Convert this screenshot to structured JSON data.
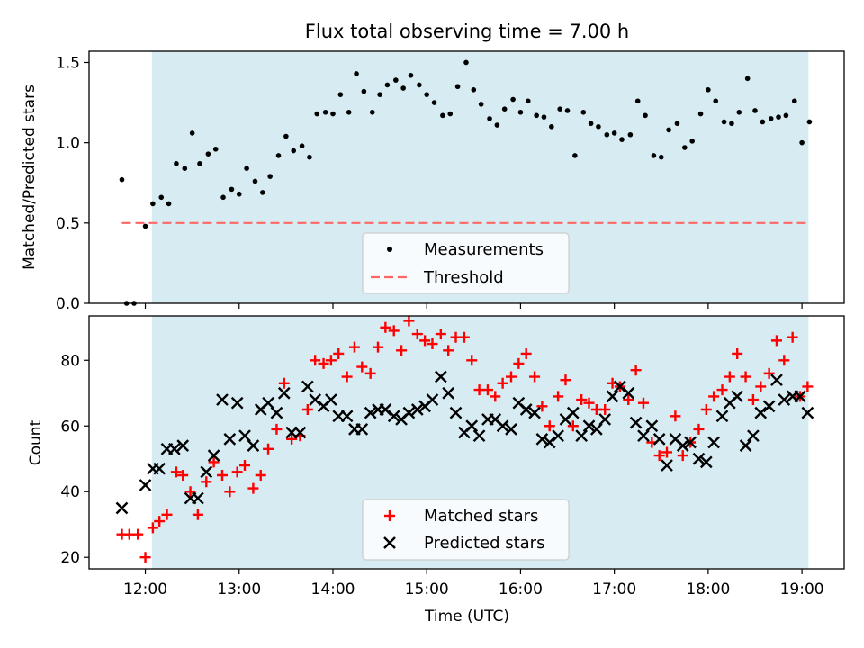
{
  "chart_data": [
    {
      "type": "scatter",
      "title": "Flux total observing time = 7.00 h",
      "xlabel": "",
      "ylabel": "Matched/Predicted stars",
      "xlim": [
        11.4,
        19.45
      ],
      "ylim": [
        0.0,
        1.57
      ],
      "xticks": [
        12,
        13,
        14,
        15,
        16,
        17,
        18,
        19
      ],
      "yticks": [
        0.0,
        0.5,
        1.0,
        1.5
      ],
      "ytick_labels": [
        "0.0",
        "0.5",
        "1.0",
        "1.5"
      ],
      "shaded_x_range": [
        12.07,
        19.07
      ],
      "legend": {
        "location": "lower center",
        "entries": [
          "Measurements",
          "Threshold"
        ]
      },
      "threshold": {
        "name": "Threshold",
        "value": 0.5,
        "x_range": [
          11.75,
          19.05
        ],
        "color": "#ff6666"
      },
      "series": [
        {
          "name": "Measurements",
          "marker": "dot",
          "color": "#000000",
          "x": [
            11.75,
            11.8,
            11.88,
            12.0,
            12.08,
            12.17,
            12.25,
            12.33,
            12.42,
            12.5,
            12.58,
            12.67,
            12.75,
            12.83,
            12.92,
            13.0,
            13.08,
            13.17,
            13.25,
            13.33,
            13.42,
            13.5,
            13.58,
            13.67,
            13.75,
            13.83,
            13.92,
            14.0,
            14.08,
            14.17,
            14.25,
            14.33,
            14.42,
            14.5,
            14.58,
            14.67,
            14.75,
            14.83,
            14.92,
            15.0,
            15.08,
            15.17,
            15.25,
            15.33,
            15.42,
            15.5,
            15.58,
            15.67,
            15.75,
            15.83,
            15.92,
            16.0,
            16.08,
            16.17,
            16.25,
            16.33,
            16.42,
            16.5,
            16.58,
            16.67,
            16.75,
            16.83,
            16.92,
            17.0,
            17.08,
            17.17,
            17.25,
            17.33,
            17.42,
            17.5,
            17.58,
            17.67,
            17.75,
            17.83,
            17.92,
            18.0,
            18.08,
            18.17,
            18.25,
            18.33,
            18.42,
            18.5,
            18.58,
            18.67,
            18.75,
            18.83,
            18.92,
            19.0,
            19.08
          ],
          "y": [
            0.77,
            0.0,
            0.0,
            0.48,
            0.62,
            0.66,
            0.62,
            0.87,
            0.84,
            1.06,
            0.87,
            0.93,
            0.96,
            0.66,
            0.71,
            0.68,
            0.84,
            0.76,
            0.69,
            0.79,
            0.92,
            1.04,
            0.95,
            0.98,
            0.91,
            1.18,
            1.19,
            1.18,
            1.3,
            1.19,
            1.43,
            1.32,
            1.19,
            1.3,
            1.36,
            1.39,
            1.34,
            1.42,
            1.36,
            1.3,
            1.25,
            1.17,
            1.18,
            1.35,
            1.5,
            1.33,
            1.24,
            1.15,
            1.11,
            1.21,
            1.27,
            1.19,
            1.26,
            1.17,
            1.16,
            1.1,
            1.21,
            1.2,
            0.92,
            1.19,
            1.12,
            1.1,
            1.05,
            1.06,
            1.02,
            1.05,
            1.26,
            1.17,
            0.92,
            0.91,
            1.08,
            1.12,
            0.97,
            1.01,
            1.18,
            1.33,
            1.26,
            1.13,
            1.12,
            1.19,
            1.4,
            1.2,
            1.13,
            1.15,
            1.16,
            1.17,
            1.26,
            1.0,
            1.13
          ]
        }
      ]
    },
    {
      "type": "scatter",
      "title": "",
      "xlabel": "Time (UTC)",
      "ylabel": "Count",
      "xlim": [
        11.4,
        19.45
      ],
      "ylim": [
        16.5,
        93.5
      ],
      "xticks": [
        12,
        13,
        14,
        15,
        16,
        17,
        18,
        19
      ],
      "xtick_labels": [
        "12:00",
        "13:00",
        "14:00",
        "15:00",
        "16:00",
        "17:00",
        "18:00",
        "19:00"
      ],
      "yticks": [
        20,
        40,
        60,
        80
      ],
      "ytick_labels": [
        "20",
        "40",
        "60",
        "80"
      ],
      "shaded_x_range": [
        12.07,
        19.07
      ],
      "legend": {
        "location": "lower center",
        "entries": [
          "Matched stars",
          "Predicted stars"
        ]
      },
      "series": [
        {
          "name": "Matched stars",
          "marker": "plus",
          "color": "#ff0000",
          "x": [
            11.75,
            11.83,
            11.92,
            12.0,
            12.08,
            12.15,
            12.23,
            12.33,
            12.4,
            12.48,
            12.56,
            12.65,
            12.73,
            12.82,
            12.9,
            12.98,
            13.06,
            13.15,
            13.23,
            13.31,
            13.4,
            13.48,
            13.56,
            13.65,
            13.73,
            13.81,
            13.9,
            13.98,
            14.06,
            14.15,
            14.23,
            14.31,
            14.4,
            14.48,
            14.56,
            14.65,
            14.73,
            14.81,
            14.9,
            14.98,
            15.06,
            15.15,
            15.23,
            15.31,
            15.4,
            15.48,
            15.56,
            15.65,
            15.73,
            15.81,
            15.9,
            15.98,
            16.06,
            16.15,
            16.23,
            16.31,
            16.4,
            16.48,
            16.56,
            16.65,
            16.73,
            16.81,
            16.9,
            16.98,
            17.06,
            17.15,
            17.23,
            17.31,
            17.4,
            17.48,
            17.56,
            17.65,
            17.73,
            17.81,
            17.9,
            17.98,
            18.06,
            18.15,
            18.23,
            18.31,
            18.4,
            18.48,
            18.56,
            18.65,
            18.73,
            18.81,
            18.9,
            18.98,
            19.06
          ],
          "y": [
            27,
            27,
            27,
            20,
            29,
            31,
            33,
            46,
            45,
            40,
            33,
            43,
            49,
            45,
            40,
            46,
            48,
            41,
            45,
            53,
            59,
            73,
            56,
            57,
            65,
            80,
            79,
            80,
            82,
            75,
            84,
            78,
            76,
            84,
            90,
            89,
            83,
            92,
            88,
            86,
            85,
            88,
            83,
            87,
            87,
            80,
            71,
            71,
            69,
            73,
            75,
            79,
            82,
            75,
            66,
            60,
            69,
            74,
            60,
            68,
            67,
            65,
            65,
            73,
            72,
            68,
            77,
            67,
            55,
            51,
            52,
            63,
            51,
            55,
            59,
            65,
            69,
            71,
            75,
            82,
            75,
            68,
            72,
            76,
            86,
            80,
            87,
            69,
            72
          ]
        },
        {
          "name": "Predicted stars",
          "marker": "x",
          "color": "#000000",
          "x": [
            11.75,
            12.0,
            12.08,
            12.15,
            12.23,
            12.31,
            12.4,
            12.48,
            12.56,
            12.65,
            12.73,
            12.82,
            12.9,
            12.98,
            13.06,
            13.15,
            13.23,
            13.31,
            13.4,
            13.48,
            13.56,
            13.65,
            13.73,
            13.81,
            13.9,
            13.98,
            14.06,
            14.15,
            14.23,
            14.31,
            14.4,
            14.48,
            14.56,
            14.65,
            14.73,
            14.81,
            14.9,
            14.98,
            15.06,
            15.15,
            15.23,
            15.31,
            15.4,
            15.48,
            15.56,
            15.65,
            15.73,
            15.81,
            15.9,
            15.98,
            16.06,
            16.15,
            16.23,
            16.31,
            16.4,
            16.48,
            16.56,
            16.65,
            16.73,
            16.81,
            16.9,
            16.98,
            17.06,
            17.15,
            17.23,
            17.31,
            17.4,
            17.48,
            17.56,
            17.65,
            17.73,
            17.81,
            17.9,
            17.98,
            18.06,
            18.15,
            18.23,
            18.31,
            18.4,
            18.48,
            18.56,
            18.65,
            18.73,
            18.81,
            18.9,
            18.98,
            19.06
          ],
          "y": [
            35,
            42,
            47,
            47,
            53,
            53,
            54,
            38,
            38,
            46,
            51,
            68,
            56,
            67,
            57,
            54,
            65,
            67,
            64,
            70,
            58,
            58,
            72,
            68,
            66,
            68,
            63,
            63,
            59,
            59,
            64,
            65,
            65,
            63,
            62,
            64,
            65,
            66,
            68,
            75,
            70,
            64,
            58,
            60,
            57,
            62,
            62,
            60,
            59,
            67,
            65,
            64,
            56,
            55,
            57,
            62,
            64,
            57,
            60,
            59,
            62,
            69,
            72,
            70,
            61,
            57,
            60,
            56,
            48,
            56,
            54,
            55,
            50,
            49,
            55,
            63,
            67,
            69,
            54,
            57,
            64,
            66,
            74,
            68,
            69,
            69,
            64
          ]
        }
      ]
    }
  ]
}
